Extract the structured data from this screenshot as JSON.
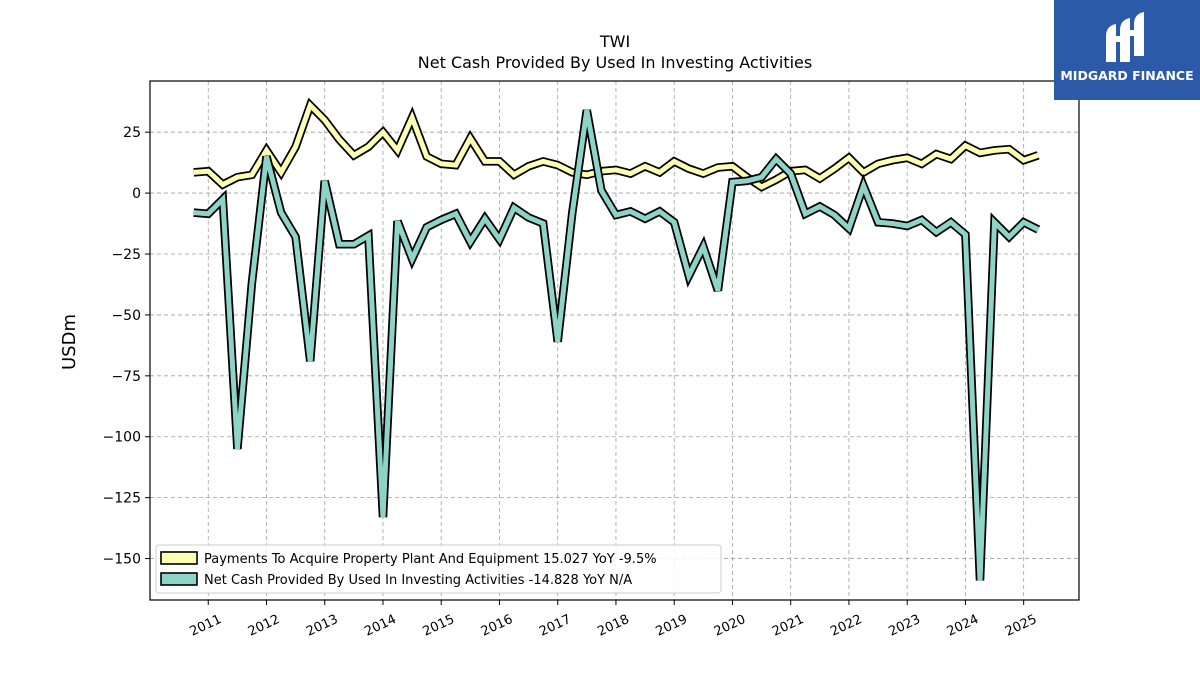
{
  "logo": {
    "text": "MIDGARD FINANCE",
    "color": "#2d5aa8"
  },
  "chart_data": {
    "type": "line",
    "title": "TWI",
    "subtitle": "Net Cash Provided By Used In Investing Activities",
    "ylabel": "USDm",
    "xlabel": "",
    "xlim": [
      2010.0,
      2025.95
    ],
    "ylim": [
      -167,
      46
    ],
    "yticks": [
      25,
      0,
      -25,
      -50,
      -75,
      -100,
      -125,
      -150
    ],
    "ytick_labels": [
      "25",
      "0",
      "−25",
      "−50",
      "−75",
      "−100",
      "−125",
      "−150"
    ],
    "xticks": [
      2011,
      2012,
      2013,
      2014,
      2015,
      2016,
      2017,
      2018,
      2019,
      2020,
      2021,
      2022,
      2023,
      2024,
      2025
    ],
    "xtick_labels": [
      "2011",
      "2012",
      "2013",
      "2014",
      "2015",
      "2016",
      "2017",
      "2018",
      "2019",
      "2020",
      "2021",
      "2022",
      "2023",
      "2024",
      "2025"
    ],
    "grid": true,
    "legend_position": "bottom-left",
    "x": [
      2010.75,
      2011.0,
      2011.25,
      2011.5,
      2011.75,
      2012.0,
      2012.25,
      2012.5,
      2012.75,
      2013.0,
      2013.25,
      2013.5,
      2013.75,
      2014.0,
      2014.25,
      2014.5,
      2014.75,
      2015.0,
      2015.25,
      2015.5,
      2015.75,
      2016.0,
      2016.25,
      2016.5,
      2016.75,
      2017.0,
      2017.25,
      2017.5,
      2017.75,
      2018.0,
      2018.25,
      2018.5,
      2018.75,
      2019.0,
      2019.25,
      2019.5,
      2019.75,
      2020.0,
      2020.25,
      2020.5,
      2020.75,
      2021.0,
      2021.25,
      2021.5,
      2021.75,
      2022.0,
      2022.25,
      2022.5,
      2022.75,
      2023.0,
      2023.25,
      2023.5,
      2023.75,
      2024.0,
      2024.25,
      2024.5,
      2024.75,
      2025.0,
      2025.25
    ],
    "series": [
      {
        "name": "Payments To Acquire Property Plant And Equipment  15.027 YoY -9.5%",
        "color": "#ffffb3",
        "values": [
          8.5,
          9.0,
          3.5,
          6.5,
          7.5,
          17.5,
          8.5,
          19.0,
          36.0,
          30.0,
          22.0,
          15.5,
          19.0,
          25.0,
          17.5,
          31.0,
          15.0,
          12.0,
          11.5,
          22.5,
          13.0,
          13.0,
          7.5,
          11.0,
          13.0,
          11.5,
          8.5,
          7.5,
          9.0,
          9.5,
          8.0,
          11.0,
          8.5,
          13.0,
          10.0,
          8.0,
          10.5,
          11.0,
          6.5,
          2.5,
          5.5,
          9.0,
          9.5,
          6.0,
          10.0,
          14.5,
          8.5,
          12.0,
          13.5,
          14.5,
          12.0,
          16.0,
          14.0,
          19.5,
          16.5,
          17.5,
          18.0,
          13.5,
          15.5
        ]
      },
      {
        "name": "Net Cash Provided By Used In Investing Activities  -14.828 YoY N/A",
        "color": "#8dd3c7",
        "values": [
          -8.0,
          -8.5,
          -2.5,
          -105.0,
          -37.0,
          15.0,
          -8.0,
          -18.0,
          -69.0,
          5.0,
          -21.0,
          -21.0,
          -17.5,
          -133.0,
          -11.5,
          -27.0,
          -14.0,
          -11.0,
          -8.5,
          -20.0,
          -10.5,
          -19.0,
          -6.0,
          -10.0,
          -12.5,
          -61.0,
          -8.0,
          34.0,
          1.0,
          -9.0,
          -7.5,
          -10.5,
          -7.5,
          -12.0,
          -34.0,
          -22.0,
          -40.0,
          4.5,
          5.0,
          6.5,
          14.0,
          8.0,
          -8.5,
          -5.5,
          -9.0,
          -14.5,
          3.0,
          -12.0,
          -12.5,
          -13.5,
          -11.0,
          -16.0,
          -12.0,
          -17.0,
          -159.0,
          -12.0,
          -18.0,
          -12.0,
          -15.0
        ]
      }
    ]
  }
}
